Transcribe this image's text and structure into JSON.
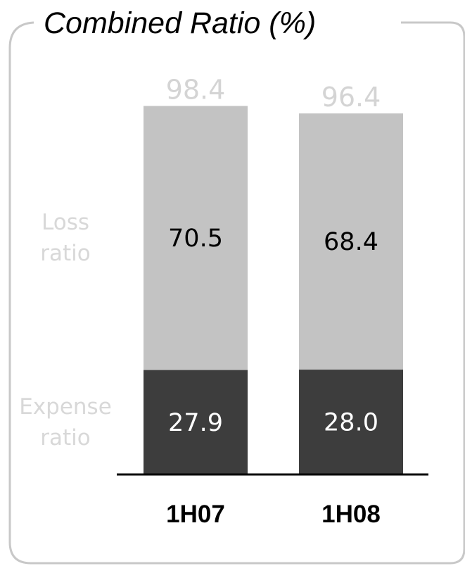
{
  "chart_data": {
    "type": "bar",
    "stacked": true,
    "title": "Combined Ratio (%)",
    "categories": [
      "1H07",
      "1H08"
    ],
    "series": [
      {
        "name": "Expense ratio",
        "name_lines": [
          "Expense",
          "ratio"
        ],
        "values": [
          27.9,
          28.0
        ],
        "value_labels": [
          "27.9",
          "28.0"
        ],
        "color": "#3d3d3d",
        "label_color": "#ffffff"
      },
      {
        "name": "Loss ratio",
        "name_lines": [
          "Loss",
          "ratio"
        ],
        "values": [
          70.5,
          68.4
        ],
        "value_labels": [
          "70.5",
          "68.4"
        ],
        "color": "#c3c3c3",
        "label_color": "#000000"
      }
    ],
    "totals": [
      98.4,
      96.4
    ],
    "total_labels": [
      "98.4",
      "96.4"
    ],
    "colors": {
      "frame": "#c8c8c8",
      "total_label": "#d4d4d4",
      "legend_label": "#d8d8d8",
      "axis": "#000000"
    },
    "grid": false,
    "legend": "left-inline"
  }
}
